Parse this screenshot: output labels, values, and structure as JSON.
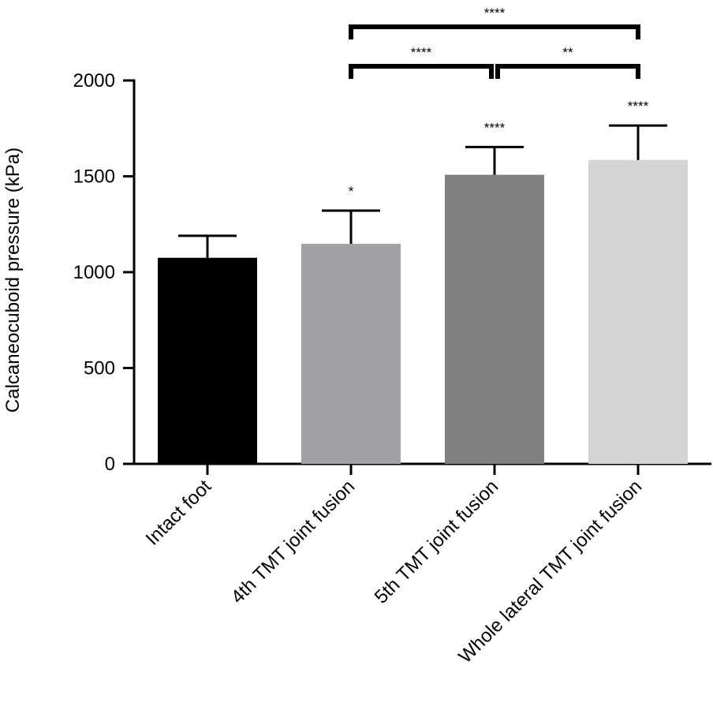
{
  "chart_data": {
    "type": "bar",
    "title": "",
    "xlabel": "",
    "ylabel": "Calcaneocuboid pressure (kPa)",
    "ylim": [
      0,
      2000
    ],
    "yticks": [
      0,
      500,
      1000,
      1500,
      2000
    ],
    "grid": false,
    "legend": "none",
    "categories": [
      "Intact foot",
      "4th TMT joint fusion",
      "5th TMT joint fusion",
      "Whole lateral TMT joint fusion"
    ],
    "values": [
      1075,
      1148,
      1508,
      1585
    ],
    "error_upper": [
      115,
      173,
      145,
      180
    ],
    "bar_colors": [
      "#000000",
      "#a2a2a6",
      "#808080",
      "#d4d4d4"
    ],
    "bar_significance": [
      "",
      "*",
      "****",
      "****"
    ],
    "comparisons": [
      {
        "from": 1,
        "to": 3,
        "label": "****"
      },
      {
        "from": 1,
        "to": 2,
        "label": "****"
      },
      {
        "from": 2,
        "to": 3,
        "label": "**"
      }
    ]
  }
}
